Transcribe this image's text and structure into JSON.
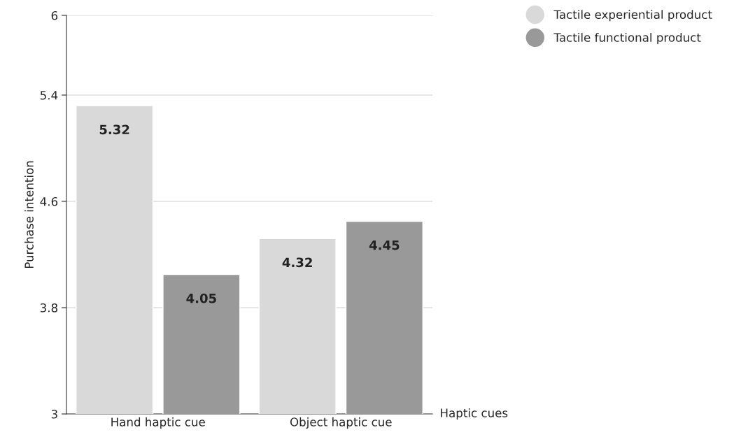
{
  "chart_data": {
    "type": "bar",
    "xlabel": "Haptic cues",
    "ylabel": "Purchase intention",
    "categories": [
      "Hand haptic cue",
      "Object haptic cue"
    ],
    "series": [
      {
        "name": "Tactile experiential product",
        "color": "#d9d9d9",
        "values": [
          5.32,
          4.32
        ]
      },
      {
        "name": "Tactile functional product",
        "color": "#999999",
        "values": [
          4.05,
          4.45
        ]
      }
    ],
    "ylim": [
      3,
      6
    ],
    "yticks": [
      3,
      3.8,
      4.6,
      5.4,
      6
    ],
    "grid": "y",
    "legend": "top right",
    "data_labels": true
  }
}
